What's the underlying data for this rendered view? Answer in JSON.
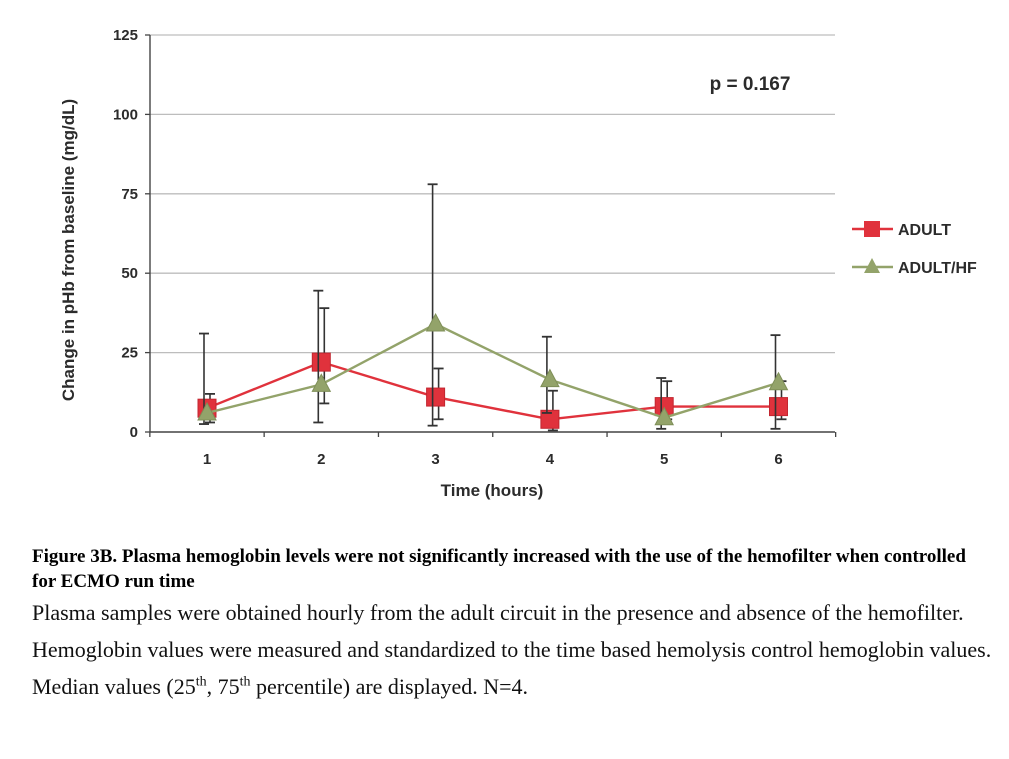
{
  "chart_data": {
    "type": "line",
    "x": [
      1,
      2,
      3,
      4,
      5,
      6
    ],
    "xlabel": "Time (hours)",
    "ylabel": "Change in pHb from baseline (mg/dL)",
    "ylim": [
      0,
      125
    ],
    "yticks": [
      0,
      25,
      50,
      75,
      100,
      125
    ],
    "xticks": [
      "1",
      "2",
      "3",
      "4",
      "5",
      "6"
    ],
    "grid": "horizontal",
    "legend_position": "right",
    "annotation": "p = 0.167",
    "series": [
      {
        "name": "ADULT",
        "color": "#e0323c",
        "marker": "square",
        "values": [
          7.5,
          22,
          11,
          4,
          8,
          8
        ],
        "lower": [
          3,
          9,
          4,
          0.5,
          4,
          4
        ],
        "upper": [
          12,
          39,
          20,
          13,
          16,
          16
        ]
      },
      {
        "name": "ADULT/HF",
        "color": "#93a36a",
        "marker": "triangle",
        "values": [
          6,
          15,
          34,
          16.5,
          4.5,
          15.5
        ],
        "lower": [
          2.5,
          3,
          2,
          6,
          1,
          1
        ],
        "upper": [
          31,
          44.5,
          78,
          30,
          17,
          30.5
        ]
      }
    ]
  },
  "caption": {
    "title": "Figure 3B. Plasma hemoglobin levels were not significantly increased with the use of the hemofilter when controlled for ECMO run time",
    "body_before": "Plasma samples were obtained hourly from the adult circuit in the presence and absence of the hemofilter. Hemoglobin values were measured and standardized to the time based hemolysis control hemoglobin values. Median values (25",
    "sup1": "th",
    "middle": ", 75",
    "sup2": "th",
    "body_after": " percentile) are displayed. N=4."
  }
}
